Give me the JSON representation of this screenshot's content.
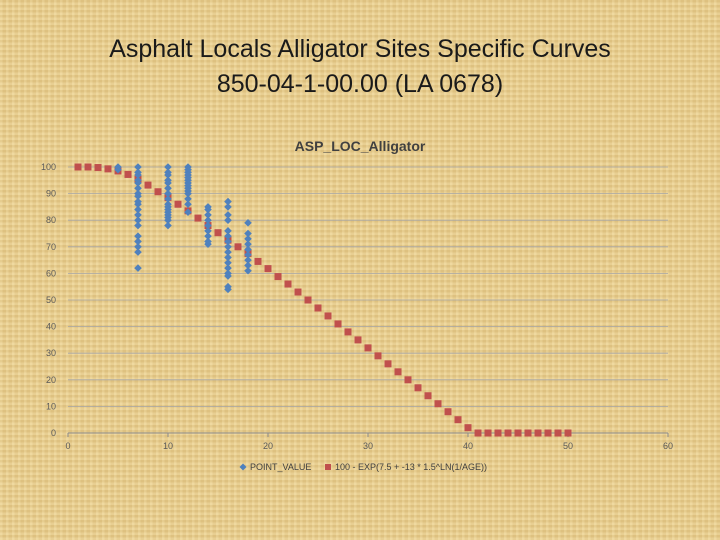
{
  "slide": {
    "title_line1": "Asphalt Locals Alligator Sites Specific Curves",
    "title_line2": "850-04-1-00.00 (LA 0678)"
  },
  "chart_data": {
    "type": "scatter",
    "title": "ASP_LOC_Alligator",
    "xlim": [
      0,
      60
    ],
    "ylim": [
      0,
      100
    ],
    "x_ticks": [
      0,
      10,
      20,
      30,
      40,
      50,
      60
    ],
    "y_ticks": [
      0,
      10,
      20,
      30,
      40,
      50,
      60,
      70,
      80,
      90,
      100
    ],
    "grid": "horizontal",
    "legend_position": "bottom",
    "colors": {
      "points": "#4f81bd",
      "curve": "#c0504d"
    },
    "series": [
      {
        "name": "POINT_VALUE",
        "marker": "diamond",
        "points": [
          [
            5,
            100
          ],
          [
            5,
            99
          ],
          [
            7,
            100
          ],
          [
            7,
            98
          ],
          [
            7,
            97
          ],
          [
            7,
            95
          ],
          [
            7,
            94
          ],
          [
            7,
            92
          ],
          [
            7,
            90
          ],
          [
            7,
            89
          ],
          [
            7,
            87
          ],
          [
            7,
            86
          ],
          [
            7,
            84
          ],
          [
            7,
            82
          ],
          [
            7,
            80
          ],
          [
            7,
            78
          ],
          [
            7,
            74
          ],
          [
            7,
            72
          ],
          [
            7,
            70
          ],
          [
            7,
            68
          ],
          [
            7,
            62
          ],
          [
            10,
            100
          ],
          [
            10,
            98
          ],
          [
            10,
            97
          ],
          [
            10,
            95
          ],
          [
            10,
            94
          ],
          [
            10,
            92
          ],
          [
            10,
            90
          ],
          [
            10,
            88
          ],
          [
            10,
            86
          ],
          [
            10,
            85
          ],
          [
            10,
            84
          ],
          [
            10,
            83
          ],
          [
            10,
            82
          ],
          [
            10,
            81
          ],
          [
            10,
            80
          ],
          [
            10,
            78
          ],
          [
            12,
            100
          ],
          [
            12,
            99
          ],
          [
            12,
            98
          ],
          [
            12,
            97
          ],
          [
            12,
            96
          ],
          [
            12,
            95
          ],
          [
            12,
            94
          ],
          [
            12,
            93
          ],
          [
            12,
            92
          ],
          [
            12,
            91
          ],
          [
            12,
            90
          ],
          [
            12,
            88
          ],
          [
            12,
            86
          ],
          [
            12,
            83
          ],
          [
            14,
            85
          ],
          [
            14,
            84
          ],
          [
            14,
            82
          ],
          [
            14,
            80
          ],
          [
            14,
            78
          ],
          [
            14,
            76
          ],
          [
            14,
            74
          ],
          [
            14,
            72
          ],
          [
            14,
            71
          ],
          [
            16,
            87
          ],
          [
            16,
            85
          ],
          [
            16,
            82
          ],
          [
            16,
            80
          ],
          [
            16,
            76
          ],
          [
            16,
            74
          ],
          [
            16,
            72
          ],
          [
            16,
            70
          ],
          [
            16,
            68
          ],
          [
            16,
            66
          ],
          [
            16,
            64
          ],
          [
            16,
            62
          ],
          [
            16,
            60
          ],
          [
            16,
            59
          ],
          [
            16,
            55
          ],
          [
            16,
            54
          ],
          [
            18,
            79
          ],
          [
            18,
            75
          ],
          [
            18,
            73
          ],
          [
            18,
            71
          ],
          [
            18,
            69
          ],
          [
            18,
            67
          ],
          [
            18,
            65
          ],
          [
            18,
            63
          ],
          [
            18,
            61
          ]
        ]
      },
      {
        "name": "100 - EXP(7.5 + -13 * 1.5^LN(1/AGE))",
        "marker": "square",
        "points": [
          [
            1,
            100
          ],
          [
            2,
            100
          ],
          [
            3,
            99.8
          ],
          [
            4,
            99.3
          ],
          [
            5,
            98.5
          ],
          [
            6,
            97.2
          ],
          [
            7,
            95.4
          ],
          [
            8,
            93.2
          ],
          [
            9,
            90.7
          ],
          [
            10,
            88.5
          ],
          [
            11,
            86
          ],
          [
            12,
            83.5
          ],
          [
            13,
            80.8
          ],
          [
            14,
            78
          ],
          [
            15,
            75.3
          ],
          [
            16,
            72.5
          ],
          [
            17,
            70
          ],
          [
            18,
            67.5
          ],
          [
            19,
            64.5
          ],
          [
            20,
            61.8
          ],
          [
            21,
            58.8
          ],
          [
            22,
            56
          ],
          [
            23,
            53
          ],
          [
            24,
            50
          ],
          [
            25,
            47
          ],
          [
            26,
            44
          ],
          [
            27,
            41
          ],
          [
            28,
            38
          ],
          [
            29,
            35
          ],
          [
            30,
            32
          ],
          [
            31,
            29
          ],
          [
            32,
            26
          ],
          [
            33,
            23
          ],
          [
            34,
            20
          ],
          [
            35,
            17
          ],
          [
            36,
            14
          ],
          [
            37,
            11
          ],
          [
            38,
            8
          ],
          [
            39,
            5
          ],
          [
            40,
            2
          ],
          [
            41,
            0
          ],
          [
            42,
            0
          ],
          [
            43,
            0
          ],
          [
            44,
            0
          ],
          [
            45,
            0
          ],
          [
            46,
            0
          ],
          [
            47,
            0
          ],
          [
            48,
            0
          ],
          [
            49,
            0
          ],
          [
            50,
            0
          ]
        ]
      }
    ]
  }
}
